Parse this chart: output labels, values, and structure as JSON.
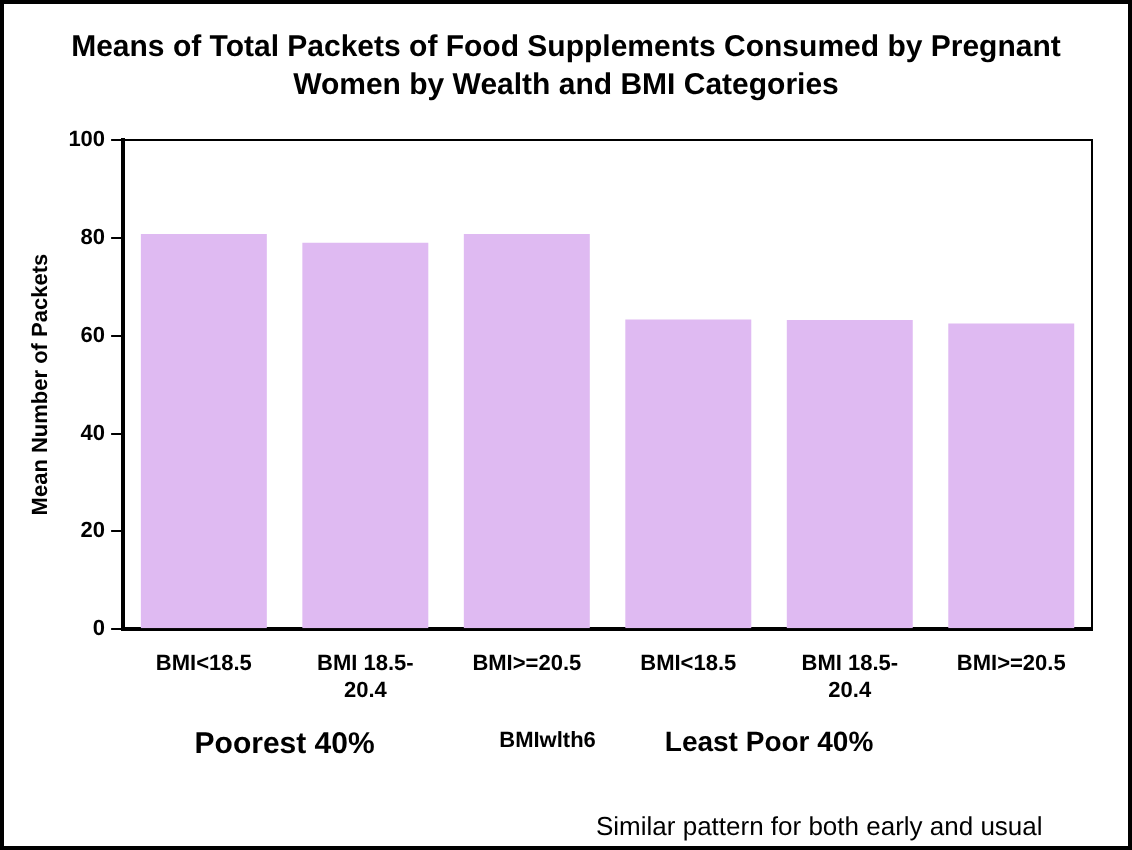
{
  "chart_data": {
    "type": "bar",
    "title": "Means of Total Packets of Food Supplements Consumed by Pregnant Women by Wealth and BMI Categories",
    "xlabel": "BMIwlth6",
    "ylabel": "Mean Number of Packets",
    "categories": [
      "BMI<18.5",
      "BMI 18.5-20.4",
      "BMI>=20.5",
      "BMI<18.5",
      "BMI 18.5-20.4",
      "BMI>=20.5"
    ],
    "values": [
      80.8,
      79,
      80.8,
      63.3,
      63.2,
      62.5
    ],
    "color": "#dfbaf2",
    "ylim": [
      0,
      100
    ],
    "yticks": [
      0,
      20,
      40,
      60,
      80,
      100
    ],
    "grid": false,
    "annotations": [
      "Poorest 40%",
      "Least Poor 40%",
      "Similar pattern for both early and usual"
    ]
  }
}
